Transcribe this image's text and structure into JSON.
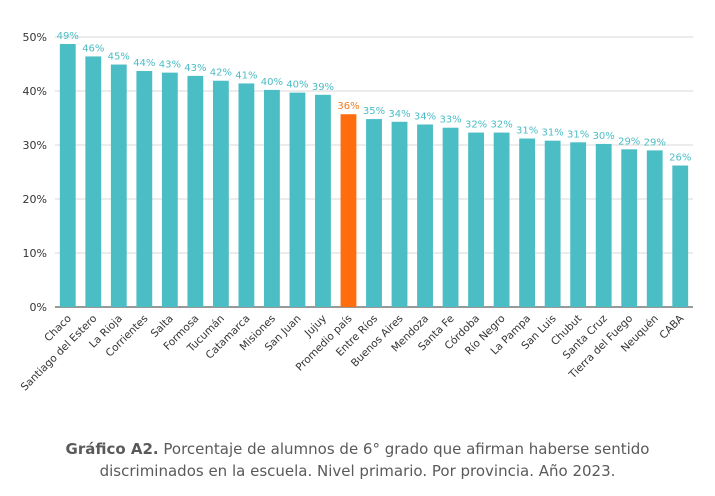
{
  "chart_data": {
    "type": "bar",
    "categories": [
      "Chaco",
      "Santiago del Estero",
      "La Rioja",
      "Corrientes",
      "Salta",
      "Formosa",
      "Tucumán",
      "Catamarca",
      "Misiones",
      "San Juan",
      "Jujuy",
      "Promedio país",
      "Entre Ríos",
      "Buenos Aires",
      "Mendoza",
      "Santa Fe",
      "Córdoba",
      "Río Negro",
      "La Pampa",
      "San Luis",
      "Chubut",
      "Santa Cruz",
      "Tierra del Fuego",
      "Neuquén",
      "CABA"
    ],
    "values": [
      48.7,
      46.4,
      44.9,
      43.7,
      43.4,
      42.8,
      41.9,
      41.4,
      40.2,
      39.7,
      39.3,
      35.7,
      34.8,
      34.3,
      33.8,
      33.2,
      32.3,
      32.3,
      31.2,
      30.8,
      30.5,
      30.2,
      29.2,
      29.0,
      26.2
    ],
    "data_labels": [
      "49%",
      "46%",
      "45%",
      "44%",
      "43%",
      "43%",
      "42%",
      "41%",
      "40%",
      "40%",
      "39%",
      "36%",
      "35%",
      "34%",
      "34%",
      "33%",
      "32%",
      "32%",
      "31%",
      "31%",
      "31%",
      "30%",
      "29%",
      "29%",
      "26%"
    ],
    "highlight_index": 11,
    "ylim": [
      0,
      50
    ],
    "yticks": [
      "0%",
      "10%",
      "20%",
      "30%",
      "40%",
      "50%"
    ],
    "grid": true,
    "colors": {
      "bar": "#4bbdc5",
      "highlight": "#ff6d0f",
      "label": "#4bbdc5",
      "highlight_label": "#f07a20",
      "grid": "#d9d9d9",
      "axis": "#333333"
    }
  },
  "caption": {
    "bold": "Gráfico A2.",
    "text": " Porcentaje de alumnos de 6° grado que afirman haberse sentido discriminados en la escuela. Nivel primario. Por provincia. Año 2023."
  }
}
